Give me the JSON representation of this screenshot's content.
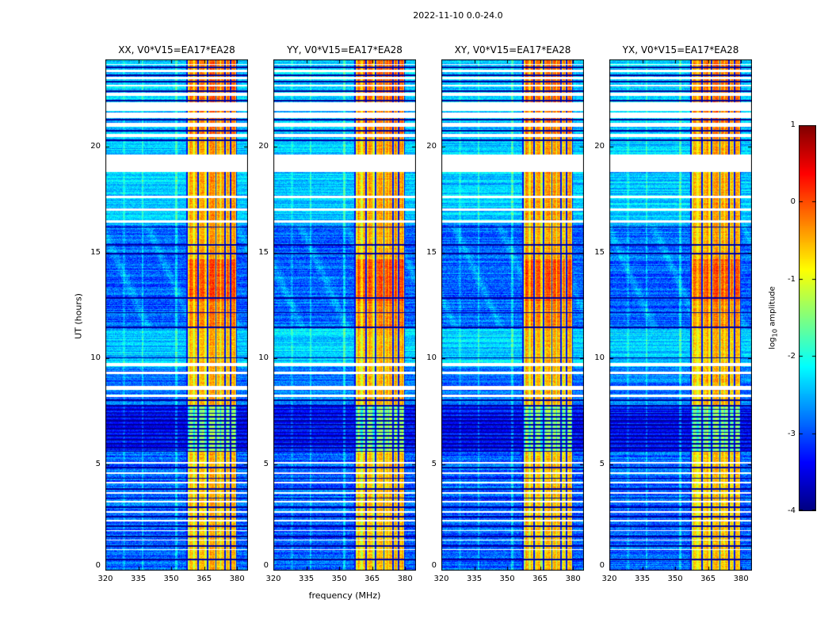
{
  "figure": {
    "title": "2022-11-10 0.0-24.0"
  },
  "chart_data": {
    "type": "heatmap",
    "title": "2022-11-10 0.0-24.0",
    "xlabel": "frequency (MHz)",
    "ylabel": "UT (hours)",
    "xlim": [
      320,
      385
    ],
    "ylim": [
      0,
      24.1
    ],
    "xticks": [
      320,
      335,
      350,
      365,
      380
    ],
    "yticks": [
      0,
      5,
      10,
      15,
      20
    ],
    "colormap": "jet",
    "panels": [
      {
        "title": "XX, V0*V15=EA17*EA28",
        "pol": "XX",
        "seed": 1
      },
      {
        "title": "YY, V0*V15=EA17*EA28",
        "pol": "YY",
        "seed": 2
      },
      {
        "title": "XY, V0*V15=EA17*EA28",
        "pol": "XY",
        "seed": 3
      },
      {
        "title": "YX, V0*V15=EA17*EA28",
        "pol": "YX",
        "seed": 4
      }
    ],
    "colorbar": {
      "label_main": "log",
      "label_sub": "10",
      "label_rest": " amplitude",
      "ticks": [
        1,
        0,
        -1,
        -2,
        -3,
        -4
      ],
      "vmin": -4,
      "vmax": 1
    },
    "features": {
      "background_regions": [
        {
          "t0": 0.0,
          "t1": 5.6,
          "level": -2.9,
          "noise": 0.7
        },
        {
          "t0": 5.6,
          "t1": 7.8,
          "level": -3.3,
          "noise": 0.5
        },
        {
          "t0": 7.8,
          "t1": 9.6,
          "level": -2.8,
          "noise": 0.6
        },
        {
          "t0": 9.6,
          "t1": 11.4,
          "level": -2.35,
          "noise": 0.5
        },
        {
          "t0": 11.4,
          "t1": 16.3,
          "level": -2.9,
          "noise": 0.65
        },
        {
          "t0": 16.3,
          "t1": 20.4,
          "level": -2.4,
          "noise": 0.5
        },
        {
          "t0": 20.4,
          "t1": 24.1,
          "level": -2.4,
          "noise": 0.55
        }
      ],
      "rfi_band": {
        "f0": 357.4,
        "f1": 379.7
      },
      "rfi_levels": [
        {
          "t0": 0.0,
          "t1": 5.6,
          "level": -0.85
        },
        {
          "t0": 5.6,
          "t1": 7.8,
          "level": -1.7
        },
        {
          "t0": 7.8,
          "t1": 9.6,
          "level": -0.8
        },
        {
          "t0": 9.6,
          "t1": 11.4,
          "level": -0.8
        },
        {
          "t0": 11.4,
          "t1": 12.7,
          "level": -0.55
        },
        {
          "t0": 12.7,
          "t1": 14.7,
          "level": -0.3
        },
        {
          "t0": 14.7,
          "t1": 16.3,
          "level": -0.75
        },
        {
          "t0": 16.3,
          "t1": 20.4,
          "level": -0.7
        },
        {
          "t0": 20.4,
          "t1": 24.1,
          "level": -0.45
        }
      ],
      "rfi_strips": [
        [
          358.1,
          359.9
        ],
        [
          360.7,
          361.8
        ],
        [
          363.1,
          365.3
        ],
        [
          367.2,
          369.9
        ],
        [
          370.9,
          372.3
        ],
        [
          372.9,
          374.1
        ],
        [
          375.1,
          376.3
        ],
        [
          377.5,
          379.3
        ]
      ],
      "flagged_channels": [
        357.2,
        362.3,
        366.6,
        370.4,
        374.6,
        377.0,
        379.8
      ],
      "bright_channels": [
        {
          "f": 328.5,
          "w": 0.4,
          "boost": 0.3
        },
        {
          "f": 337.0,
          "w": 0.4,
          "boost": 0.45
        },
        {
          "f": 352.2,
          "w": 0.5,
          "boost": 0.6
        }
      ],
      "white_rows": [
        [
          23.82,
          23.88
        ],
        [
          23.5,
          23.63
        ],
        [
          23.17,
          23.28
        ],
        [
          22.82,
          22.92
        ],
        [
          22.38,
          22.53
        ],
        [
          21.68,
          22.08
        ],
        [
          21.32,
          21.6
        ],
        [
          20.92,
          21.12
        ],
        [
          20.42,
          20.58
        ],
        [
          18.8,
          19.6
        ],
        [
          17.55,
          17.66
        ],
        [
          16.98,
          17.08
        ],
        [
          16.4,
          16.5
        ],
        [
          9.63,
          9.79
        ],
        [
          9.26,
          9.39
        ],
        [
          8.53,
          8.69
        ],
        [
          8.2,
          8.29
        ],
        [
          5.03,
          5.11
        ],
        [
          4.56,
          4.64
        ],
        [
          4.11,
          4.18
        ],
        [
          3.63,
          3.69
        ],
        [
          3.21,
          3.27
        ],
        [
          2.73,
          2.79
        ],
        [
          2.33,
          2.39
        ],
        [
          1.86,
          1.92
        ],
        [
          1.41,
          1.47
        ],
        [
          0.96,
          1.02
        ]
      ],
      "black_rows": [
        0.52,
        1.15,
        1.62,
        2.1,
        2.55,
        3.0,
        3.42,
        3.85,
        4.35,
        4.85,
        8.04,
        10.03,
        11.46,
        12.16,
        12.86,
        14.96,
        15.36,
        16.2,
        20.3,
        20.75,
        21.25,
        22.15,
        22.6,
        23.05,
        23.35,
        23.72
      ],
      "black_row_bands": [
        {
          "t0": 5.62,
          "t1": 7.78,
          "n": 13
        }
      ]
    }
  }
}
